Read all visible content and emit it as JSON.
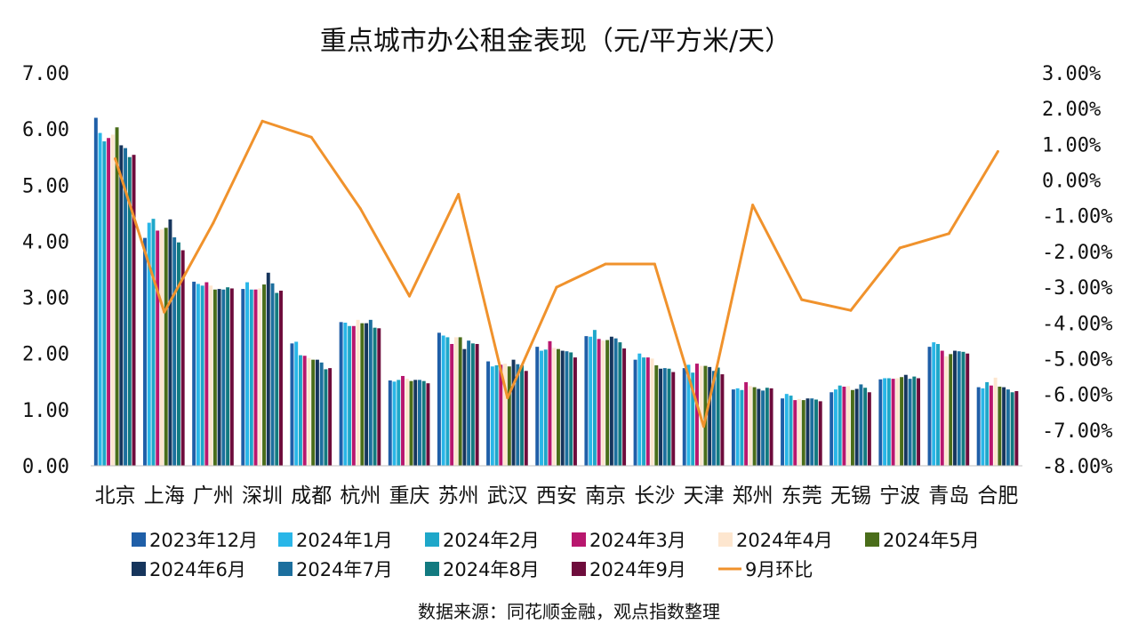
{
  "chart_data": {
    "type": "bar",
    "title": "重点城市办公租金表现（元/平方米/天）",
    "source": "数据来源：同花顺金融，观点指数整理",
    "categories": [
      "北京",
      "上海",
      "广州",
      "深圳",
      "成都",
      "杭州",
      "重庆",
      "苏州",
      "武汉",
      "西安",
      "南京",
      "长沙",
      "天津",
      "郑州",
      "东莞",
      "无锡",
      "宁波",
      "青岛",
      "合肥"
    ],
    "y_left": {
      "ylim": [
        0,
        7
      ],
      "ticks": [
        "0.00",
        "1.00",
        "2.00",
        "3.00",
        "4.00",
        "5.00",
        "6.00",
        "7.00"
      ]
    },
    "y_right": {
      "ylim": [
        -8,
        3
      ],
      "ticks": [
        "-8.00%",
        "-7.00%",
        "-6.00%",
        "-5.00%",
        "-4.00%",
        "-3.00%",
        "-2.00%",
        "-1.00%",
        "0.00%",
        "1.00%",
        "2.00%",
        "3.00%"
      ]
    },
    "series": [
      {
        "name": "2023年12月",
        "color": "#1f5fa8",
        "values": [
          6.2,
          4.06,
          3.28,
          3.15,
          2.18,
          2.56,
          1.52,
          2.37,
          1.86,
          2.12,
          2.31,
          1.89,
          1.74,
          1.36,
          1.2,
          1.31,
          1.54,
          2.12,
          1.4
        ]
      },
      {
        "name": "2024年1月",
        "color": "#29b6e8",
        "values": [
          5.93,
          4.33,
          3.24,
          3.27,
          2.21,
          2.55,
          1.5,
          2.32,
          1.77,
          2.05,
          2.3,
          2.0,
          1.8,
          1.38,
          1.28,
          1.36,
          1.56,
          2.2,
          1.38
        ]
      },
      {
        "name": "2024年2月",
        "color": "#1ea7c9",
        "values": [
          5.78,
          4.4,
          3.21,
          3.14,
          1.97,
          2.49,
          1.53,
          2.29,
          1.79,
          2.07,
          2.42,
          1.93,
          1.66,
          1.35,
          1.25,
          1.43,
          1.56,
          2.17,
          1.49
        ]
      },
      {
        "name": "2024年3月",
        "color": "#b8176e",
        "values": [
          5.84,
          4.19,
          3.27,
          3.14,
          1.96,
          2.49,
          1.6,
          2.17,
          1.8,
          2.22,
          2.26,
          1.93,
          1.82,
          1.49,
          1.17,
          1.41,
          1.55,
          2.05,
          1.43
        ]
      },
      {
        "name": "2024年4月",
        "color": "#fde6cf",
        "values": [
          5.9,
          4.21,
          3.21,
          3.16,
          1.92,
          2.6,
          1.55,
          2.29,
          1.82,
          2.1,
          2.23,
          1.91,
          1.78,
          1.42,
          1.19,
          1.42,
          1.56,
          1.95,
          1.57
        ]
      },
      {
        "name": "2024年5月",
        "color": "#4a6d1a",
        "values": [
          6.03,
          4.24,
          3.14,
          3.23,
          1.89,
          2.54,
          1.51,
          2.29,
          1.77,
          2.08,
          2.24,
          1.79,
          1.78,
          1.4,
          1.17,
          1.35,
          1.58,
          1.99,
          1.41
        ]
      },
      {
        "name": "2024年6月",
        "color": "#16355c",
        "values": [
          5.71,
          4.39,
          3.15,
          3.44,
          1.89,
          2.54,
          1.53,
          2.08,
          1.89,
          2.05,
          2.3,
          1.73,
          1.76,
          1.37,
          1.2,
          1.37,
          1.62,
          2.05,
          1.4
        ]
      },
      {
        "name": "2024年7月",
        "color": "#1c6f9e",
        "values": [
          5.66,
          4.07,
          3.14,
          3.25,
          1.84,
          2.6,
          1.53,
          2.23,
          1.81,
          2.04,
          2.27,
          1.74,
          1.69,
          1.34,
          1.2,
          1.45,
          1.55,
          2.04,
          1.36
        ]
      },
      {
        "name": "2024年8月",
        "color": "#127a80",
        "values": [
          5.5,
          3.98,
          3.18,
          3.08,
          1.72,
          2.46,
          1.51,
          2.18,
          1.79,
          2.02,
          2.2,
          1.73,
          1.75,
          1.39,
          1.18,
          1.39,
          1.59,
          2.03,
          1.31
        ]
      },
      {
        "name": "2024年9月",
        "color": "#6e0c3c",
        "values": [
          5.54,
          3.84,
          3.16,
          3.12,
          1.74,
          2.45,
          1.47,
          2.17,
          1.69,
          1.93,
          2.09,
          1.67,
          1.63,
          1.38,
          1.15,
          1.31,
          1.56,
          2.0,
          1.33
        ]
      },
      {
        "name": "9月环比",
        "color": "#f0922c",
        "type": "line",
        "axis": "right",
        "values": [
          0.6,
          -3.7,
          -1.2,
          1.65,
          1.2,
          -0.8,
          -3.25,
          -0.4,
          -6.1,
          -3.0,
          -2.35,
          -2.35,
          -6.9,
          -0.7,
          -3.35,
          -3.65,
          -1.9,
          -1.5,
          0.8
        ]
      }
    ],
    "legend": {
      "position": "bottom",
      "entries": [
        "2023年12月",
        "2024年1月",
        "2024年2月",
        "2024年3月",
        "2024年4月",
        "2024年5月",
        "2024年6月",
        "2024年7月",
        "2024年8月",
        "2024年9月",
        "9月环比"
      ]
    },
    "grid": false
  }
}
